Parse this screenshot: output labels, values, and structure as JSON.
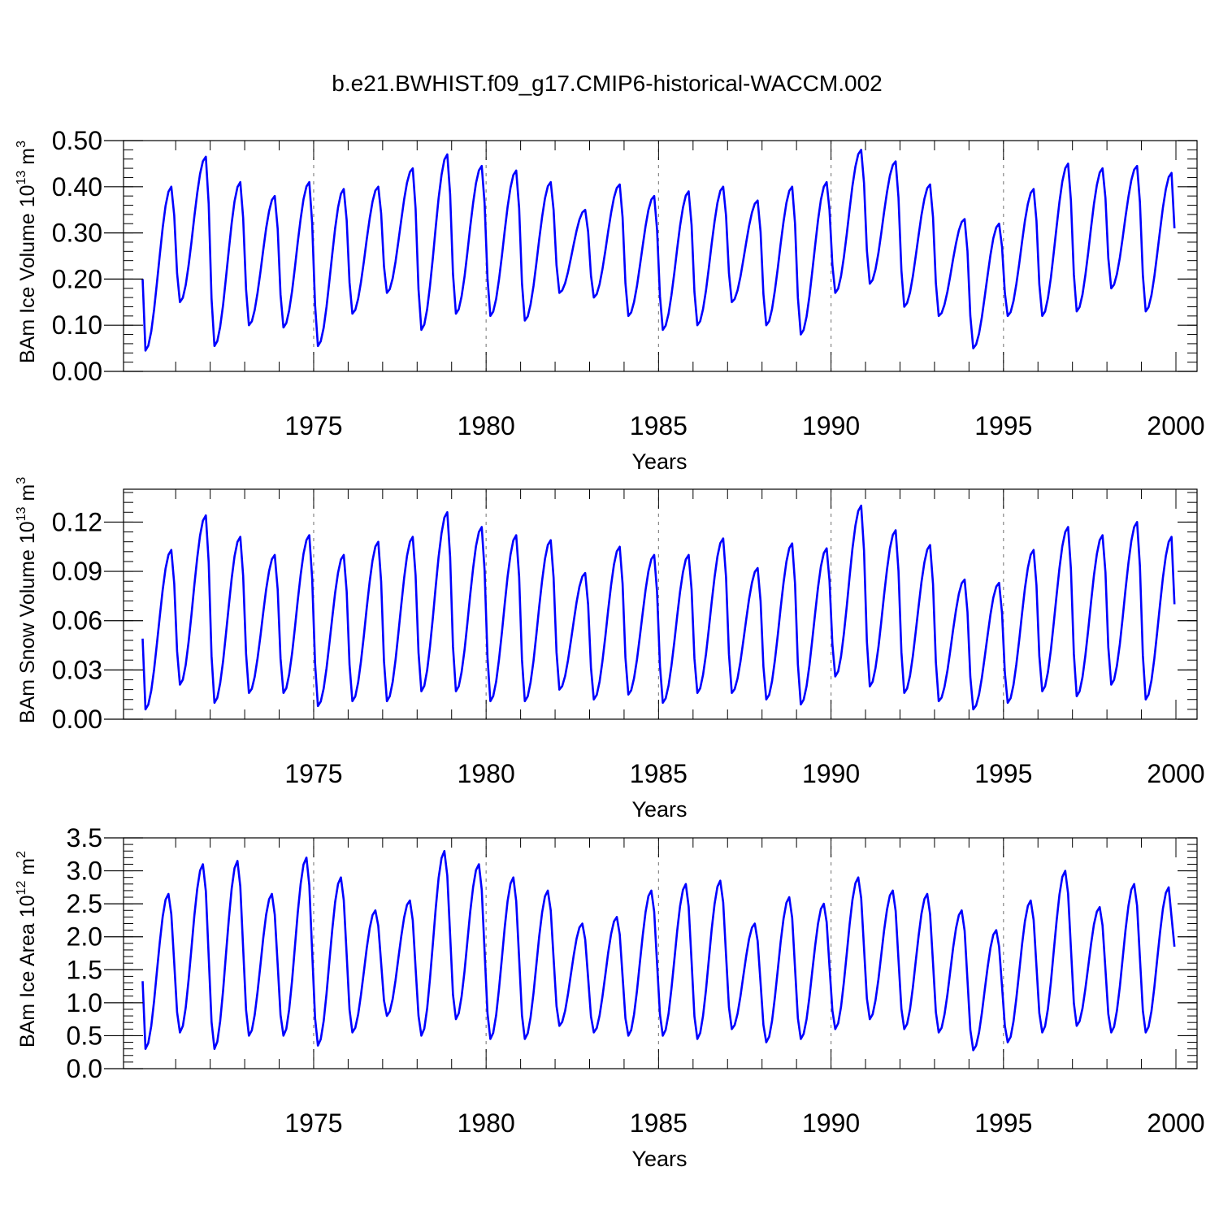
{
  "title": "b.e21.BWHIST.f09_g17.CMIP6-historical-WACCM.002",
  "colors": {
    "line": "#0000ff",
    "axis": "#000000",
    "gridline": "#888888"
  },
  "chart_data": [
    {
      "type": "line",
      "name": "ice-volume",
      "ylabel": {
        "text": "BAm Ice Volume 10",
        "exp": "13",
        "unit": " m",
        "unit_exp": "3"
      },
      "xlabel": "Years",
      "xlim": [
        1970.1,
        2000
      ],
      "ylim": [
        0,
        0.5
      ],
      "yticks": [
        0,
        0.1,
        0.2,
        0.3,
        0.4,
        0.5
      ],
      "ytick_labels": [
        "0.00",
        "0.10",
        "0.20",
        "0.30",
        "0.40",
        "0.50"
      ],
      "xticks": [
        1975,
        1980,
        1985,
        1990,
        1995,
        2000
      ],
      "xtick_labels": [
        "1975",
        "1980",
        "1985",
        "1990",
        "1995",
        "2000"
      ],
      "grid_x": [
        1975,
        1980,
        1985,
        1990,
        1995
      ],
      "start_year": 1970.04,
      "months": 360,
      "min_month": 1,
      "max_month": 10,
      "max_values": [
        0.4,
        0.465,
        0.41,
        0.38,
        0.41,
        0.395,
        0.4,
        0.44,
        0.47,
        0.445,
        0.435,
        0.41,
        0.35,
        0.405,
        0.38,
        0.39,
        0.4,
        0.37,
        0.4,
        0.41,
        0.48,
        0.455,
        0.405,
        0.33,
        0.32,
        0.395,
        0.45,
        0.44,
        0.445,
        0.43
      ],
      "min_values": [
        0.045,
        0.15,
        0.055,
        0.1,
        0.095,
        0.055,
        0.125,
        0.17,
        0.09,
        0.125,
        0.12,
        0.11,
        0.17,
        0.16,
        0.12,
        0.09,
        0.1,
        0.15,
        0.1,
        0.08,
        0.17,
        0.19,
        0.14,
        0.12,
        0.05,
        0.12,
        0.12,
        0.13,
        0.18,
        0.13
      ],
      "end_value": 0.31
    },
    {
      "type": "line",
      "name": "snow-volume",
      "ylabel": {
        "text": "BAm Snow Volume 10",
        "exp": "13",
        "unit": " m",
        "unit_exp": "3"
      },
      "xlabel": "Years",
      "xlim": [
        1970.1,
        2000
      ],
      "ylim": [
        0,
        0.14
      ],
      "yticks": [
        0,
        0.03,
        0.06,
        0.09,
        0.12
      ],
      "ytick_labels": [
        "0.00",
        "0.03",
        "0.06",
        "0.09",
        "0.12"
      ],
      "xticks": [
        1975,
        1980,
        1985,
        1990,
        1995,
        2000
      ],
      "xtick_labels": [
        "1975",
        "1980",
        "1985",
        "1990",
        "1995",
        "2000"
      ],
      "grid_x": [
        1975,
        1980,
        1985,
        1990,
        1995
      ],
      "start_year": 1970.04,
      "months": 360,
      "min_month": 1,
      "max_month": 10,
      "max_values": [
        0.103,
        0.124,
        0.111,
        0.1,
        0.112,
        0.1,
        0.108,
        0.111,
        0.126,
        0.117,
        0.112,
        0.109,
        0.089,
        0.105,
        0.1,
        0.1,
        0.11,
        0.092,
        0.107,
        0.104,
        0.13,
        0.115,
        0.106,
        0.085,
        0.083,
        0.103,
        0.117,
        0.112,
        0.12,
        0.111
      ],
      "min_values": [
        0.006,
        0.021,
        0.01,
        0.016,
        0.016,
        0.008,
        0.011,
        0.011,
        0.017,
        0.017,
        0.011,
        0.011,
        0.018,
        0.012,
        0.015,
        0.01,
        0.016,
        0.016,
        0.012,
        0.009,
        0.026,
        0.02,
        0.016,
        0.011,
        0.006,
        0.01,
        0.017,
        0.014,
        0.021,
        0.012
      ],
      "end_value": 0.07
    },
    {
      "type": "line",
      "name": "ice-area",
      "ylabel": {
        "text": "BAm Ice Area 10",
        "exp": "12",
        "unit": " m",
        "unit_exp": "2"
      },
      "xlabel": "Years",
      "xlim": [
        1970.1,
        2000
      ],
      "ylim": [
        0,
        3.5
      ],
      "yticks": [
        0,
        0.5,
        1.0,
        1.5,
        2.0,
        2.5,
        3.0,
        3.5
      ],
      "ytick_labels": [
        "0.0",
        "0.5",
        "1.0",
        "1.5",
        "2.0",
        "2.5",
        "3.0",
        "3.5"
      ],
      "xticks": [
        1975,
        1980,
        1985,
        1990,
        1995,
        2000
      ],
      "xtick_labels": [
        "1975",
        "1980",
        "1985",
        "1990",
        "1995",
        "2000"
      ],
      "grid_x": [
        1975,
        1980,
        1985,
        1990,
        1995
      ],
      "start_year": 1970.04,
      "months": 360,
      "min_month": 1,
      "max_month": 9,
      "max_values": [
        2.65,
        3.1,
        3.15,
        2.65,
        3.2,
        2.9,
        2.4,
        2.55,
        3.3,
        3.1,
        2.9,
        2.7,
        2.2,
        2.3,
        2.7,
        2.8,
        2.85,
        2.2,
        2.6,
        2.5,
        2.9,
        2.7,
        2.65,
        2.4,
        2.1,
        2.55,
        3.0,
        2.45,
        2.8,
        2.75
      ],
      "min_values": [
        0.3,
        0.55,
        0.3,
        0.5,
        0.5,
        0.35,
        0.55,
        0.8,
        0.5,
        0.75,
        0.45,
        0.45,
        0.65,
        0.55,
        0.5,
        0.5,
        0.45,
        0.6,
        0.4,
        0.45,
        0.6,
        0.75,
        0.6,
        0.55,
        0.28,
        0.4,
        0.55,
        0.65,
        0.55,
        0.55
      ],
      "end_value": 1.85
    }
  ]
}
